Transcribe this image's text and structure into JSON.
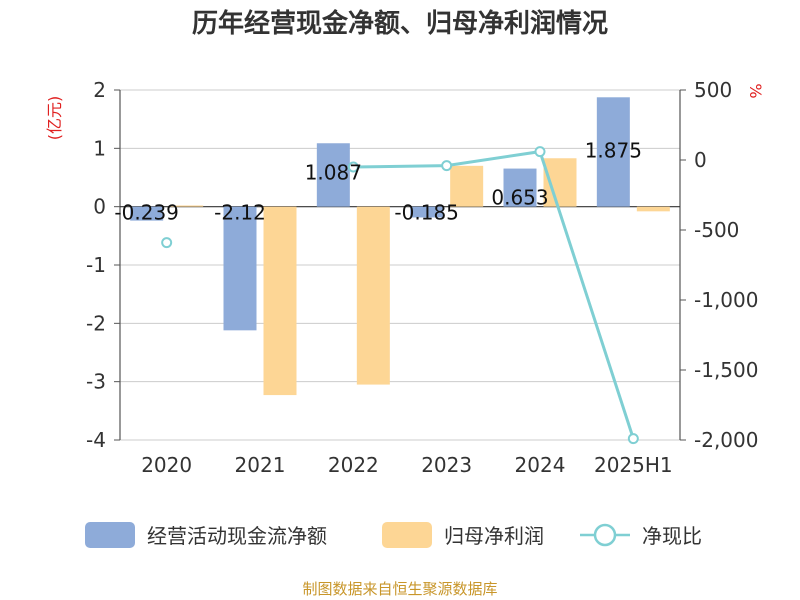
{
  "chart_data": {
    "type": "bar",
    "title": "历年经营现金净额、归母净利润情况",
    "categories": [
      "2020",
      "2021",
      "2022",
      "2023",
      "2024",
      "2025H1"
    ],
    "left_axis": {
      "unit": "(亿元)",
      "ylim": [
        -4,
        2
      ],
      "ticks": [
        "2",
        "1",
        "0",
        "-1",
        "-2",
        "-3",
        "-4"
      ]
    },
    "right_axis": {
      "unit": "%",
      "ylim": [
        -2000,
        500
      ],
      "ticks": [
        "500",
        "0",
        "-500",
        "-1,000",
        "-1,500",
        "-2,000"
      ]
    },
    "grid": true,
    "legend_position": "bottom",
    "series": [
      {
        "name": "经营活动现金流净额",
        "type": "bar",
        "axis": "left",
        "color": "#8eabd9",
        "values": [
          -0.239,
          -2.12,
          1.087,
          -0.185,
          0.653,
          1.875
        ],
        "labels": [
          "-0.239",
          "-2.12",
          "1.087",
          "-0.185",
          "0.653",
          "1.875"
        ]
      },
      {
        "name": "归母净利润",
        "type": "bar",
        "axis": "left",
        "color": "#fdd695",
        "values": [
          0.02,
          -3.23,
          -3.05,
          0.7,
          0.83,
          -0.08
        ]
      },
      {
        "name": "净现比",
        "type": "line",
        "axis": "right",
        "color": "#7fcfd3",
        "values": [
          -590,
          null,
          -50,
          -40,
          60,
          -1990
        ]
      }
    ]
  },
  "source_text": "制图数据来自恒生聚源数据库"
}
